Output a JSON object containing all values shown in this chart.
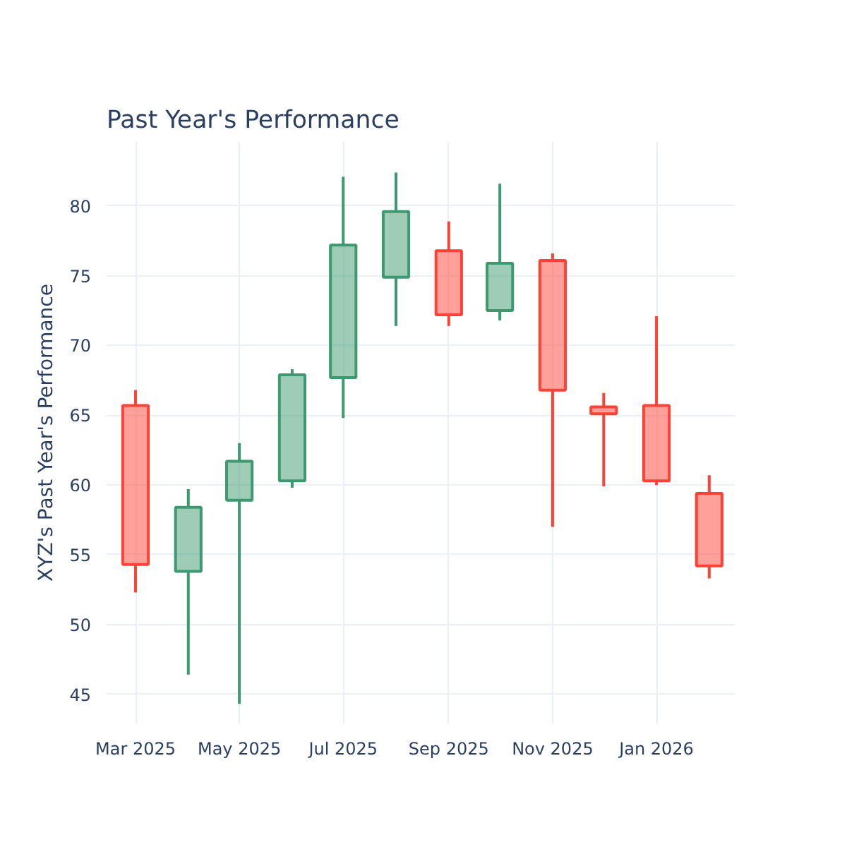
{
  "chart_data": {
    "type": "candlestick",
    "title": "Past Year's Performance",
    "ylabel": "XYZ's Past Year's Performance",
    "x": [
      "2025-03-01",
      "2025-04-01",
      "2025-05-01",
      "2025-06-01",
      "2025-07-01",
      "2025-08-01",
      "2025-09-01",
      "2025-10-01",
      "2025-11-01",
      "2025-12-01",
      "2026-01-01",
      "2026-02-01"
    ],
    "ohlc": [
      [
        65.7,
        66.8,
        52.3,
        54.3
      ],
      [
        53.8,
        59.7,
        46.4,
        58.4
      ],
      [
        58.9,
        63.0,
        44.3,
        61.7
      ],
      [
        60.3,
        68.3,
        59.8,
        67.9
      ],
      [
        67.7,
        82.1,
        64.8,
        77.2
      ],
      [
        74.9,
        82.4,
        71.4,
        79.6
      ],
      [
        76.8,
        78.9,
        71.4,
        72.2
      ],
      [
        72.5,
        81.6,
        71.8,
        75.9
      ],
      [
        76.1,
        76.6,
        57.0,
        66.8
      ],
      [
        65.6,
        66.6,
        59.9,
        65.1
      ],
      [
        65.7,
        72.1,
        60.0,
        60.3
      ],
      [
        59.4,
        60.7,
        53.3,
        54.2
      ]
    ],
    "colors": [
      "#ff4136",
      "#3d9970",
      "#3d9970",
      "#3d9970",
      "#3d9970",
      "#3d9970",
      "#ff4136",
      "#3d9970",
      "#ff4136",
      "#ff4136",
      "#ff4136",
      "#ff4136"
    ],
    "xlim": [
      "2025-02-12",
      "2026-02-16"
    ],
    "xticks": [
      {
        "value": "2025-03-01",
        "label": "Mar 2025"
      },
      {
        "value": "2025-05-01",
        "label": "May 2025"
      },
      {
        "value": "2025-07-01",
        "label": "Jul 2025"
      },
      {
        "value": "2025-09-01",
        "label": "Sep 2025"
      },
      {
        "value": "2025-11-01",
        "label": "Nov 2025"
      },
      {
        "value": "2026-01-01",
        "label": "Jan 2026"
      }
    ],
    "ylim": [
      42.9,
      84.6
    ],
    "yticks": [
      45,
      50,
      55,
      60,
      65,
      70,
      75,
      80
    ],
    "grid": true
  }
}
